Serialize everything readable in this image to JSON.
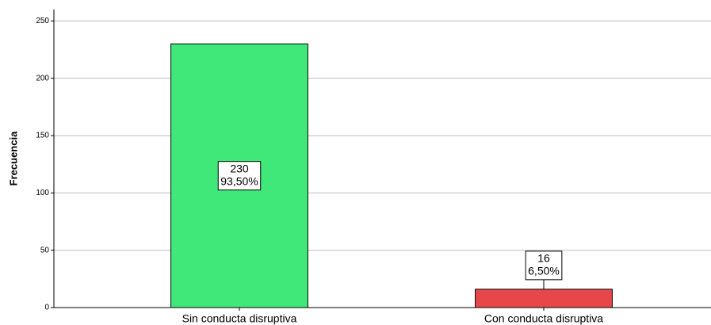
{
  "chart_data": {
    "type": "bar",
    "y_label": "Frecuencia",
    "categories": [
      "Sin conducta disruptiva",
      "Con conducta disruptiva"
    ],
    "values": [
      230,
      16
    ],
    "percent_labels": [
      "93,50%",
      "6,50%"
    ],
    "colors": [
      "#40e87a",
      "#e8474a"
    ],
    "ylim": [
      0,
      260
    ],
    "yticks": [
      0,
      50,
      100,
      150,
      200,
      250
    ],
    "grid": true
  }
}
